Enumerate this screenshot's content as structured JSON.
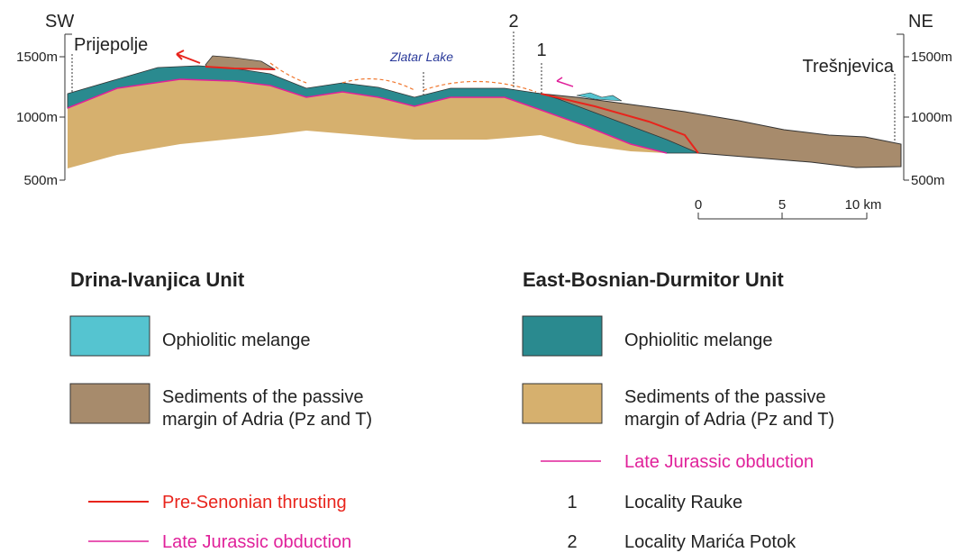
{
  "section": {
    "ends": [
      "SW",
      "NE"
    ],
    "places": [
      "Prijepolje",
      "Zlatar Lake",
      "Trešnjevica"
    ],
    "localities": [
      "2",
      "1"
    ],
    "left_axis": [
      "1500m",
      "1000m",
      "500m"
    ],
    "right_axis": [
      "1500m",
      "1000m",
      "500m"
    ],
    "scale": [
      "0",
      "5",
      "10 km"
    ]
  },
  "legend": {
    "drina": {
      "title": "Drina-Ivanjica Unit",
      "melange": "Ophiolitic melange",
      "sediments": [
        "Sediments of the passive",
        "margin of Adria (Pz and T)"
      ],
      "thrusting": "Pre-Senonian thrusting",
      "obduction": "Late Jurassic obduction"
    },
    "bosnian": {
      "title": "East-Bosnian-Durmitor Unit",
      "melange": "Ophiolitic melange",
      "sediments": [
        "Sediments of the passive",
        "margin of Adria (Pz and T)"
      ],
      "obduction": "Late Jurassic obduction",
      "localities": [
        {
          "number": "1",
          "label": "Locality Rauke"
        },
        {
          "number": "2",
          "label": "Locality Marića Potok"
        }
      ]
    }
  }
}
